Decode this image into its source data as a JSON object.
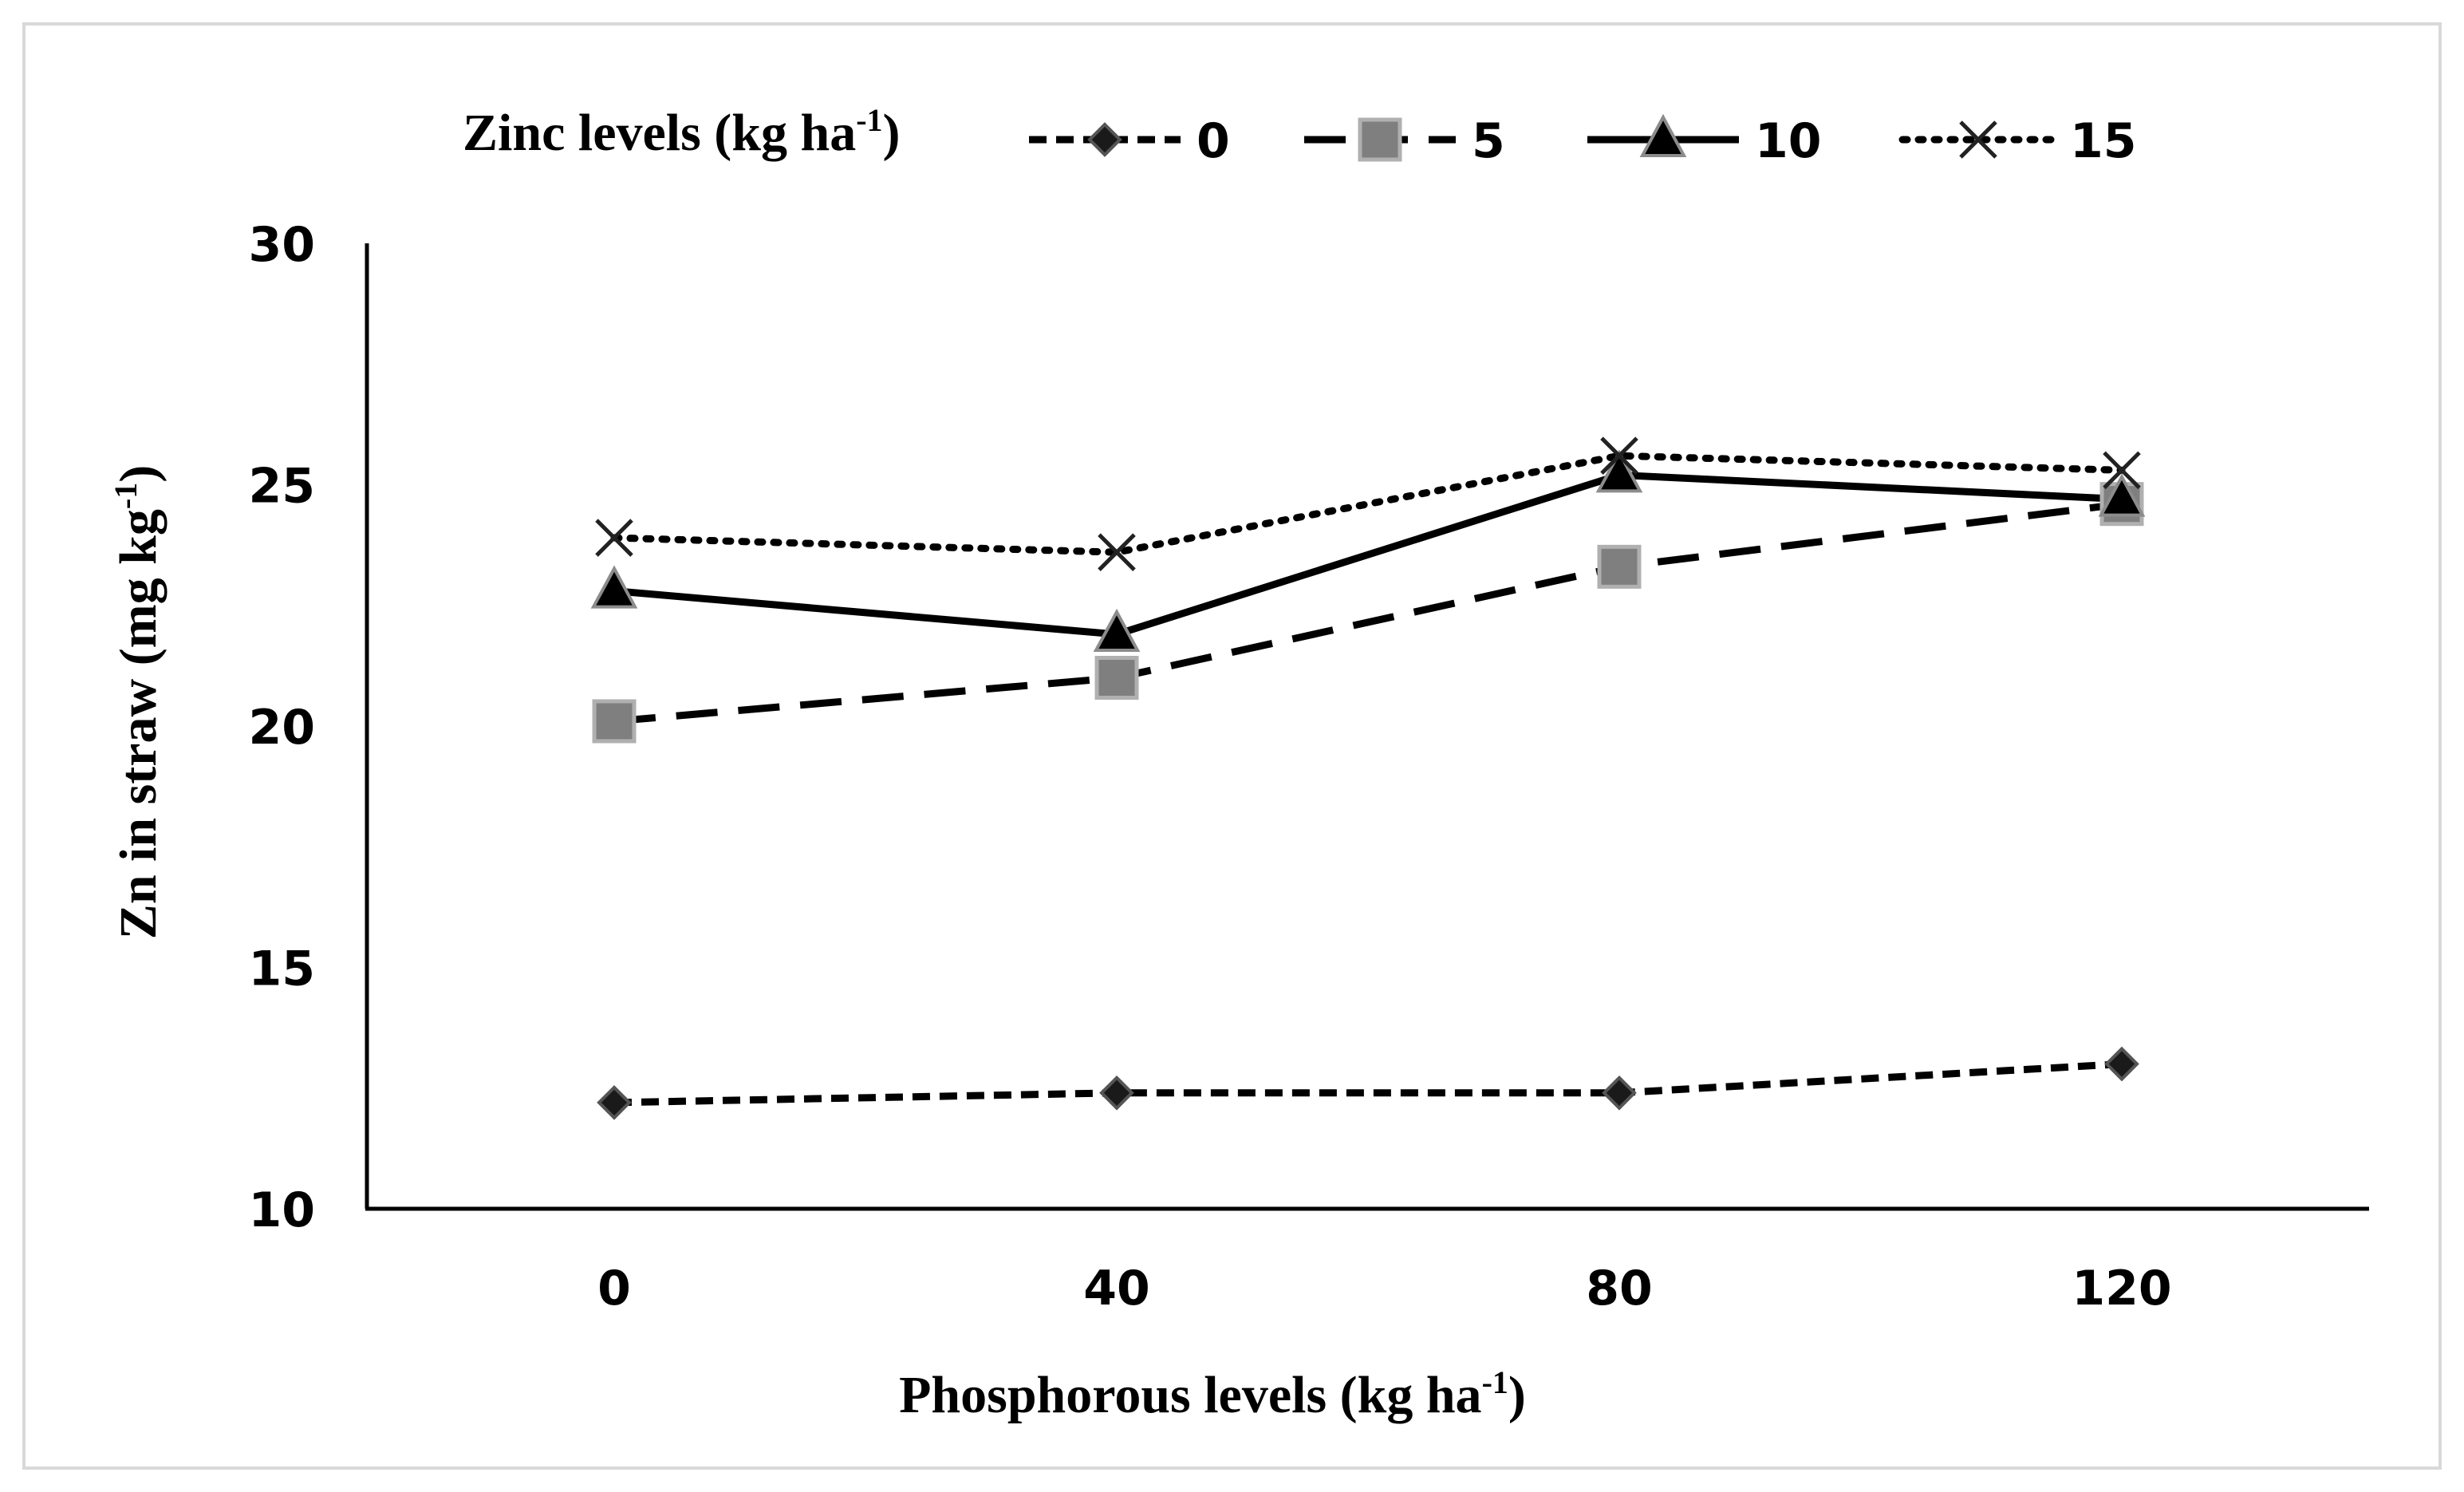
{
  "chart_data": {
    "type": "line",
    "x": [
      0,
      40,
      80,
      120
    ],
    "categories": [
      "0",
      "40",
      "80",
      "120"
    ],
    "ylim": [
      10,
      30
    ],
    "yticks": [
      "10",
      "15",
      "20",
      "25",
      "30"
    ],
    "ylabel": "Zn in straw (mg kg",
    "ylabel_sup": "-1",
    "ylabel_close": ")",
    "xlabel": "Phosphorous levels (kg ha",
    "xlabel_sup": "-1",
    "xlabel_close": ")",
    "legend_title": "Zinc levels (kg ha",
    "legend_title_sup": "-1",
    "legend_title_close": ")",
    "legend_position": "top",
    "series": [
      {
        "name": "0",
        "values": [
          12.2,
          12.4,
          12.4,
          13.0
        ],
        "marker": "diamond",
        "line": "short-dash",
        "color": "#000000",
        "marker_fill": "#1a1a1a"
      },
      {
        "name": "5",
        "values": [
          20.1,
          21.0,
          23.3,
          24.6
        ],
        "marker": "square",
        "line": "long-dash",
        "color": "#000000",
        "marker_fill": "#7f7f7f"
      },
      {
        "name": "10",
        "values": [
          22.8,
          21.9,
          25.2,
          24.7
        ],
        "marker": "triangle",
        "line": "solid",
        "color": "#000000",
        "marker_fill": "#000000"
      },
      {
        "name": "15",
        "values": [
          23.9,
          23.6,
          25.6,
          25.3
        ],
        "marker": "x",
        "line": "dotted",
        "color": "#000000",
        "marker_fill": "none"
      }
    ]
  }
}
